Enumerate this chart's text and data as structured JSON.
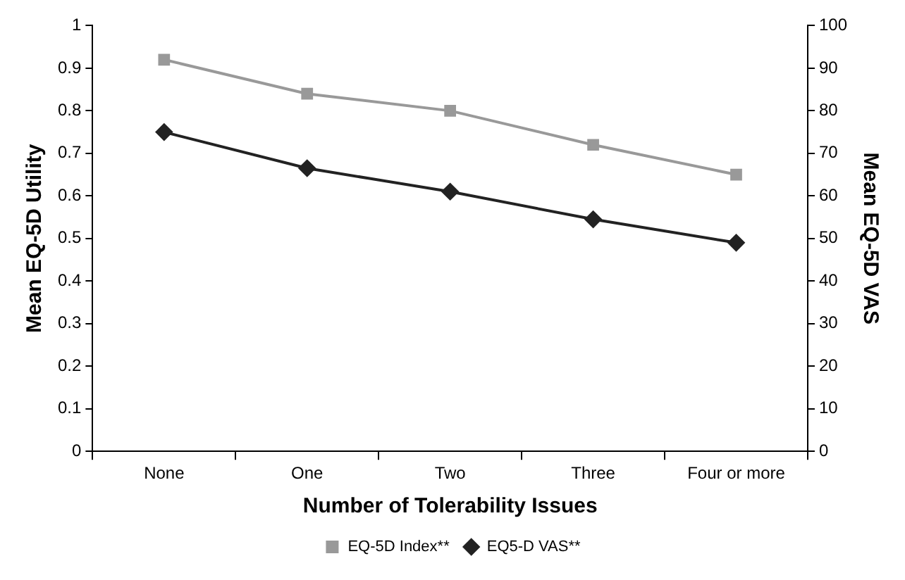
{
  "chart_data": {
    "type": "line",
    "xlabel": "Number of Tolerability Issues",
    "ylabel": "Mean EQ-5D Utility",
    "y2label": "Mean EQ-5D VAS",
    "categories": [
      "None",
      "One",
      "Two",
      "Three",
      "Four or more"
    ],
    "series": [
      {
        "name": "EQ-5D Index**",
        "color": "#999999",
        "marker": "square",
        "values": [
          0.92,
          0.84,
          0.8,
          0.72,
          0.65
        ]
      },
      {
        "name": "EQ5-D VAS**",
        "color": "#222222",
        "marker": "diamond",
        "axis": "y2",
        "values": [
          75,
          66.5,
          61,
          54.5,
          49
        ]
      }
    ],
    "ylim": [
      0,
      1
    ],
    "yticks": [
      0,
      0.1,
      0.2,
      0.3,
      0.4,
      0.5,
      0.6,
      0.7,
      0.8,
      0.9,
      1
    ],
    "y2lim": [
      0,
      100
    ],
    "y2ticks": [
      0,
      10,
      20,
      30,
      40,
      50,
      60,
      70,
      80,
      90,
      100
    ],
    "grid": false,
    "legend": "bottom"
  }
}
